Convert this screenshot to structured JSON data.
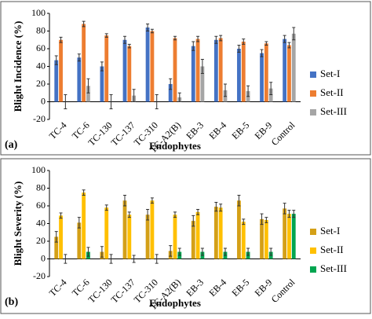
{
  "chart_data": [
    {
      "type": "bar",
      "panel_label": "(a)",
      "y_label": "Blight Incidence (%)",
      "x_label": "Endophytes",
      "categories": [
        "TC-4",
        "TC-6",
        "TC-130",
        "TC-137",
        "TC-310",
        "TC-A2(B)",
        "EB-3",
        "EB-4",
        "EB-5",
        "EB-9",
        "Control"
      ],
      "ylim": [
        -20,
        100
      ],
      "yticks": [
        -20,
        0,
        20,
        40,
        60,
        80,
        100
      ],
      "legend_position": "right",
      "series": [
        {
          "name": "Set-I",
          "color": "#4472c4",
          "values": [
            47,
            50,
            40,
            70,
            84,
            20,
            63,
            70,
            60,
            55,
            71
          ],
          "errors": [
            5,
            4,
            5,
            4,
            4,
            6,
            5,
            4,
            4,
            4,
            4
          ]
        },
        {
          "name": "Set-II",
          "color": "#ed7d31",
          "values": [
            70,
            88,
            75,
            63,
            80,
            72,
            71,
            72,
            68,
            66,
            64
          ],
          "errors": [
            3,
            3,
            2,
            2,
            2,
            2,
            3,
            3,
            3,
            2,
            3
          ]
        },
        {
          "name": "Set-III",
          "color": "#a5a5a5",
          "values": [
            0,
            18,
            0,
            7,
            0,
            5,
            40,
            13,
            12,
            15,
            77
          ],
          "errors": [
            8,
            8,
            8,
            7,
            8,
            5,
            8,
            7,
            6,
            7,
            7
          ]
        }
      ]
    },
    {
      "type": "bar",
      "panel_label": "(b)",
      "y_label": "Blight Severity (%)",
      "x_label": "Endophytes",
      "categories": [
        "TC-4",
        "TC-6",
        "TC-130",
        "TC-137",
        "TC-310",
        "TC-A2(B)",
        "EB-3",
        "EB-4",
        "EB-5",
        "EB-9",
        "Control"
      ],
      "ylim": [
        -20,
        100
      ],
      "yticks": [
        -20,
        0,
        20,
        40,
        60,
        80,
        100
      ],
      "legend_position": "right",
      "series": [
        {
          "name": "Set-I",
          "color": "#d4a017",
          "values": [
            25,
            41,
            8,
            66,
            50,
            9,
            43,
            59,
            66,
            45,
            57
          ],
          "errors": [
            6,
            6,
            6,
            6,
            6,
            6,
            6,
            5,
            6,
            6,
            6
          ]
        },
        {
          "name": "Set-II",
          "color": "#ffc000",
          "values": [
            49,
            75,
            58,
            50,
            66,
            50,
            53,
            58,
            42,
            44,
            51
          ],
          "errors": [
            3,
            3,
            3,
            3,
            3,
            3,
            3,
            4,
            3,
            3,
            4
          ]
        },
        {
          "name": "Set-III",
          "color": "#00a550",
          "values": [
            0,
            8,
            0,
            0,
            0,
            8,
            8,
            8,
            8,
            8,
            51
          ],
          "errors": [
            5,
            5,
            5,
            4,
            5,
            4,
            4,
            4,
            4,
            4,
            4
          ]
        }
      ]
    }
  ]
}
